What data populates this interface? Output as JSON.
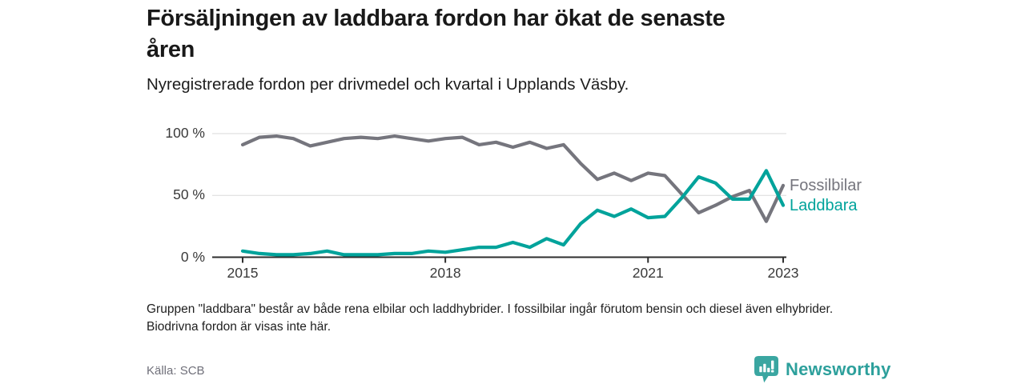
{
  "header": {
    "title": "Försäljningen av laddbara fordon har ökat de senaste åren",
    "title_lines": [
      "Försäljningen av laddbara fordon har ökat de senaste",
      "åren"
    ],
    "subtitle": "Nyregistrerade fordon per drivmedel och kvartal i Upplands Väsby."
  },
  "chart_data": {
    "type": "line",
    "title": "Försäljningen av laddbara fordon har ökat de senaste åren",
    "subtitle": "Nyregistrerade fordon per drivmedel och kvartal i Upplands Väsby.",
    "x_unit": "quarter",
    "categories": [
      "2015 K1",
      "2015 K2",
      "2015 K3",
      "2015 K4",
      "2016 K1",
      "2016 K2",
      "2016 K3",
      "2016 K4",
      "2017 K1",
      "2017 K2",
      "2017 K3",
      "2017 K4",
      "2018 K1",
      "2018 K2",
      "2018 K3",
      "2018 K4",
      "2019 K1",
      "2019 K2",
      "2019 K3",
      "2019 K4",
      "2020 K1",
      "2020 K2",
      "2020 K3",
      "2020 K4",
      "2021 K1",
      "2021 K2",
      "2021 K3",
      "2021 K4",
      "2022 K1",
      "2022 K2",
      "2022 K3",
      "2022 K4",
      "2023 K1"
    ],
    "series": [
      {
        "name": "Fossilbilar",
        "color": "#75757d",
        "unit": "%",
        "values": [
          91,
          97,
          98,
          96,
          90,
          93,
          96,
          97,
          96,
          98,
          96,
          94,
          96,
          97,
          91,
          93,
          89,
          93,
          88,
          91,
          76,
          63,
          68,
          62,
          68,
          66,
          51,
          36,
          42,
          49,
          54,
          29,
          58
        ]
      },
      {
        "name": "Laddbara",
        "color": "#00a39b",
        "unit": "%",
        "values": [
          5,
          3,
          2,
          2,
          3,
          5,
          2,
          2,
          2,
          3,
          3,
          5,
          4,
          6,
          8,
          8,
          12,
          8,
          15,
          10,
          27,
          38,
          33,
          39,
          32,
          33,
          48,
          65,
          60,
          47,
          47,
          70,
          42
        ]
      }
    ],
    "ylim": [
      0,
      100
    ],
    "y_ticks": [
      {
        "label": "0 %",
        "value": 0
      },
      {
        "label": "50 %",
        "value": 50
      },
      {
        "label": "100 %",
        "value": 100
      }
    ],
    "x_ticks": [
      {
        "label": "2015",
        "index": 0
      },
      {
        "label": "2018",
        "index": 12
      },
      {
        "label": "2021",
        "index": 24
      },
      {
        "label": "2023",
        "index": 32
      }
    ],
    "grid": true,
    "legend": "line-end-labels"
  },
  "footnote": "Gruppen \"laddbara\" består av både rena elbilar och laddhybrider. I fossilbilar ingår förutom bensin och diesel även elhybrider. Biodrivna fordon är visas inte här.",
  "source": "Källa: SCB",
  "brand": {
    "name": "Newsworthy",
    "color": "#2da09c",
    "icon": "bar-chart-speech-bubble-icon"
  }
}
